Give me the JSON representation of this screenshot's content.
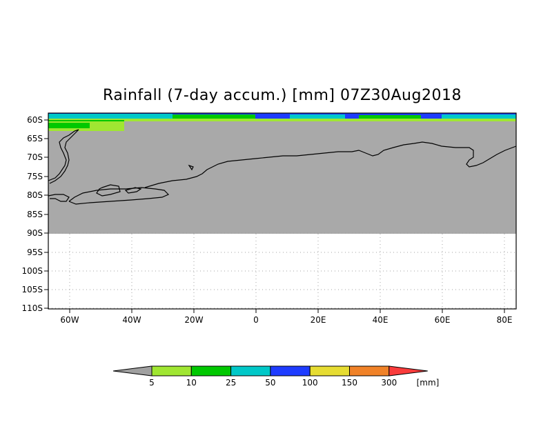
{
  "title": "Rainfall (7-day accum.) [mm] 07Z30Aug2018",
  "y_ticks": [
    "60S",
    "65S",
    "70S",
    "75S",
    "80S",
    "85S",
    "90S",
    "95S",
    "100S",
    "105S",
    "110S"
  ],
  "x_ticks": [
    "60W",
    "40W",
    "20W",
    "0",
    "20E",
    "40E",
    "60E",
    "80E"
  ],
  "legend": {
    "labels": [
      "5",
      "10",
      "25",
      "50",
      "100",
      "150",
      "300"
    ],
    "unit": "[mm]",
    "colors": [
      "#a0a0a0",
      "#a0e632",
      "#00c800",
      "#00c8c8",
      "#1e3cff",
      "#e6dc32",
      "#f08228",
      "#fa3c3c"
    ]
  },
  "colors": {
    "no_data": "#a9a9a9",
    "coastline": "#000000",
    "grid": "#a0a0a0"
  }
}
